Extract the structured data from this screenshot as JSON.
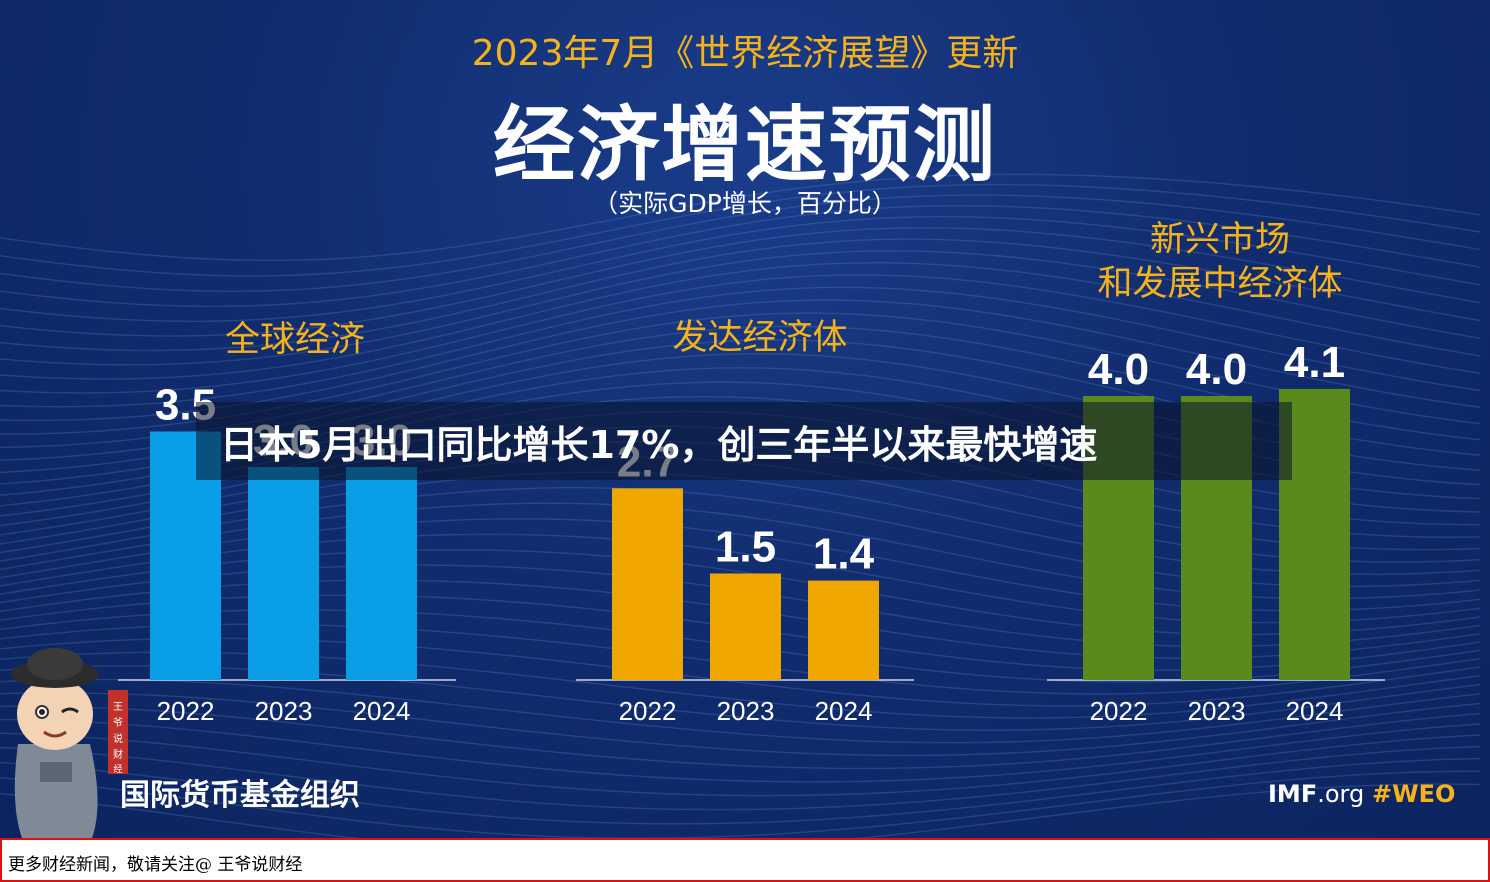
{
  "header": {
    "date_line": "2023年7月《世界经济展望》更新",
    "title": "经济增速预测",
    "unit_note": "（实际GDP增长，百分比）"
  },
  "headline": "日本5月出口同比增长17%，创三年半以来最快增速",
  "chart_data": [
    {
      "type": "bar",
      "title": "全球经济",
      "categories": [
        "2022",
        "2023",
        "2024"
      ],
      "values": [
        3.5,
        3.0,
        3.0
      ],
      "data_labels": [
        "3.5",
        "3.0",
        "3.0"
      ],
      "color": "#0a9ee6"
    },
    {
      "type": "bar",
      "title": "发达经济体",
      "categories": [
        "2022",
        "2023",
        "2024"
      ],
      "values": [
        2.7,
        1.5,
        1.4
      ],
      "data_labels": [
        "2.7",
        "1.5",
        "1.4"
      ],
      "color": "#f0a800"
    },
    {
      "type": "bar",
      "title_lines": [
        "新兴市场",
        "和发展中经济体"
      ],
      "categories": [
        "2022",
        "2023",
        "2024"
      ],
      "values": [
        4.0,
        4.0,
        4.1
      ],
      "data_labels": [
        "4.0",
        "4.0",
        "4.1"
      ],
      "color": "#5a8a1e"
    }
  ],
  "footer": {
    "org_name": "国际货币基金组织",
    "imf_bold": "IMF",
    "imf_rest": ".org",
    "hashtag": "#WEO",
    "promo": "更多财经新闻，敬请关注@ 王爷说财经"
  },
  "mascot": {
    "seal_text": "王爷说财经",
    "icon": "cartoon-mascot-icon"
  }
}
